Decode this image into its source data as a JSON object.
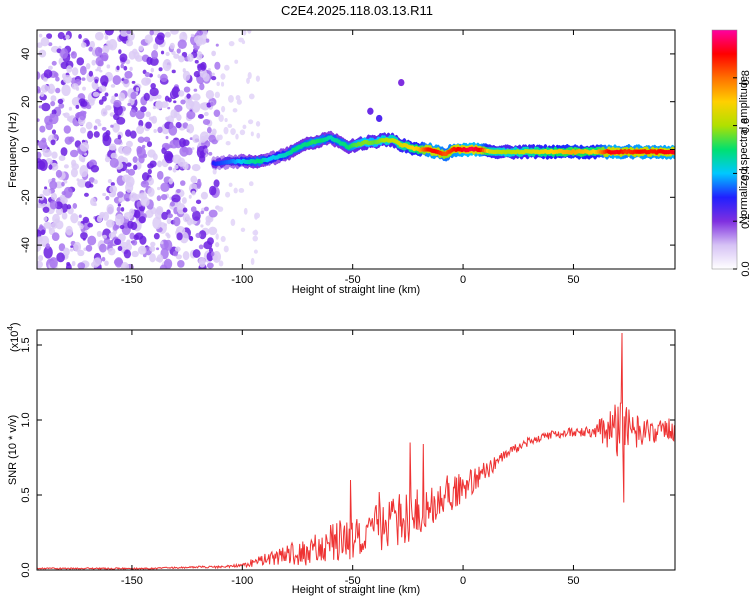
{
  "chart_data": [
    {
      "type": "heatmap",
      "title": "C2E4.2025.118.03.13.R11",
      "xlabel": "Height of straight line (km)",
      "ylabel": "Frequency (Hz)",
      "xlim": [
        -193,
        96
      ],
      "ylim": [
        -50,
        50
      ],
      "xticks": [
        -150,
        -100,
        -50,
        0,
        50
      ],
      "yticks": [
        -40,
        -20,
        0,
        20,
        40
      ],
      "colorbar": {
        "label": "Normalized spectral amplitude",
        "range": [
          0.0,
          1.0
        ],
        "ticks": [
          "0.0",
          "0.2",
          "0.4",
          "0.6",
          "0.8"
        ],
        "tick_values": [
          0,
          0.2,
          0.4,
          0.6,
          0.8
        ],
        "colors": [
          "#ffffff",
          "#d6c2f5",
          "#7f2fe0",
          "#2020ff",
          "#00c8ff",
          "#00e070",
          "#b0e000",
          "#ffd000",
          "#ff7000",
          "#ff0000",
          "#ff00a0"
        ]
      },
      "noise_region": {
        "x": [
          -193,
          -113
        ],
        "amplitude": 0.15
      },
      "ridge": {
        "x": [
          -113,
          -105,
          -97,
          -92,
          -88,
          -84,
          -80,
          -76,
          -72,
          -68,
          -64,
          -60,
          -56,
          -52,
          -48,
          -44,
          -40,
          -36,
          -32,
          -28,
          -24,
          -20,
          -16,
          -12,
          -8,
          -4,
          0,
          4,
          8,
          12,
          20,
          30,
          40,
          50,
          60,
          66,
          70,
          74,
          80,
          86,
          90,
          96
        ],
        "frequency": [
          -6,
          -5,
          -5,
          -5,
          -4,
          -3,
          -2,
          0,
          2,
          3,
          4,
          5,
          3,
          1,
          2,
          3,
          3,
          4,
          4,
          2,
          1,
          0,
          0,
          -1,
          -2,
          0,
          0,
          0,
          0,
          -1,
          -1,
          -1,
          -1,
          -1,
          -1,
          -1,
          -1,
          -1,
          -1,
          -1,
          -1,
          -1
        ],
        "amplitude": [
          0.3,
          0.35,
          0.45,
          0.5,
          0.4,
          0.42,
          0.45,
          0.5,
          0.48,
          0.52,
          0.5,
          0.45,
          0.48,
          0.5,
          0.55,
          0.58,
          0.55,
          0.6,
          0.62,
          0.65,
          0.68,
          0.72,
          0.88,
          0.9,
          0.82,
          0.88,
          0.92,
          0.95,
          0.9,
          0.65,
          0.6,
          0.65,
          0.7,
          0.75,
          0.7,
          0.9,
          0.92,
          0.85,
          0.9,
          0.88,
          0.9,
          0.92
        ]
      },
      "blobs": [
        {
          "x": -38,
          "y": 13,
          "amplitude": 0.25
        },
        {
          "x": -42,
          "y": 16,
          "amplitude": 0.22
        },
        {
          "x": -28,
          "y": 28,
          "amplitude": 0.2
        }
      ]
    },
    {
      "type": "line",
      "xlabel": "Height of straight line (km)",
      "ylabel": "SNR (10 * v/v)",
      "multiplier": "(x10",
      "multiplier_exp": "4",
      "xlim": [
        -193,
        96
      ],
      "ylim": [
        0,
        1.6
      ],
      "xticks": [
        -150,
        -100,
        -50,
        0,
        50
      ],
      "yticks": [
        "0.0",
        "0.5",
        "1.0",
        "1.5"
      ],
      "ytick_values": [
        0,
        0.5,
        1.0,
        1.5
      ],
      "color": "#ee3333",
      "series": [
        {
          "x": [
            -193,
            -180,
            -160,
            -140,
            -120,
            -110,
            -100,
            -95,
            -90,
            -85,
            -80,
            -75,
            -70,
            -65,
            -60,
            -55,
            -50,
            -45,
            -40,
            -35,
            -30,
            -25,
            -20,
            -15,
            -10,
            -5,
            0,
            5,
            10,
            15,
            20,
            25,
            30,
            35,
            40,
            45,
            50,
            55,
            60,
            65,
            70,
            75,
            80,
            85,
            90,
            96
          ],
          "values": [
            0.01,
            0.01,
            0.01,
            0.01,
            0.02,
            0.02,
            0.03,
            0.05,
            0.07,
            0.08,
            0.1,
            0.11,
            0.12,
            0.15,
            0.18,
            0.2,
            0.22,
            0.24,
            0.28,
            0.3,
            0.32,
            0.36,
            0.4,
            0.44,
            0.48,
            0.52,
            0.55,
            0.6,
            0.66,
            0.72,
            0.78,
            0.82,
            0.86,
            0.88,
            0.9,
            0.91,
            0.92,
            0.92,
            0.93,
            0.94,
            0.94,
            0.93,
            0.92,
            0.92,
            0.93,
            0.94
          ],
          "noise": [
            0.005,
            0.005,
            0.005,
            0.005,
            0.006,
            0.008,
            0.01,
            0.03,
            0.04,
            0.05,
            0.07,
            0.08,
            0.09,
            0.11,
            0.13,
            0.14,
            0.15,
            0.16,
            0.17,
            0.18,
            0.18,
            0.18,
            0.17,
            0.16,
            0.14,
            0.12,
            0.1,
            0.08,
            0.07,
            0.05,
            0.04,
            0.03,
            0.03,
            0.03,
            0.03,
            0.03,
            0.03,
            0.03,
            0.05,
            0.12,
            0.2,
            0.15,
            0.1,
            0.08,
            0.07,
            0.08
          ]
        }
      ],
      "peaks": [
        {
          "x": 72,
          "y": 1.58
        },
        {
          "x": 72.8,
          "y": 0.45
        },
        {
          "x": -24,
          "y": 0.85
        },
        {
          "x": -18,
          "y": 0.84
        },
        {
          "x": -51,
          "y": 0.6
        },
        {
          "x": -38,
          "y": 0.52
        }
      ]
    }
  ]
}
